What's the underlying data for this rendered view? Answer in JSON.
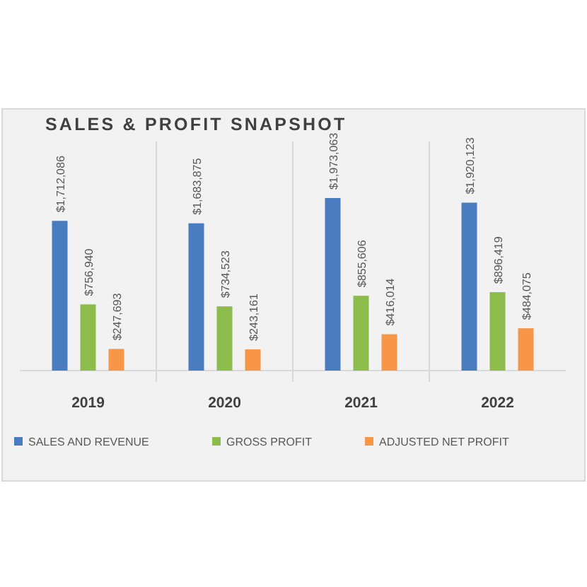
{
  "chart_data": {
    "type": "bar",
    "title": "SALES & PROFIT SNAPSHOT",
    "categories": [
      "2019",
      "2020",
      "2021",
      "2022"
    ],
    "series": [
      {
        "name": "SALES AND REVENUE",
        "color": "#4a7cc0",
        "values": [
          1712086,
          1683875,
          1973063,
          1920123
        ],
        "value_labels": [
          "$1,712,086",
          "$1,683,875",
          "$1,973,063",
          "$1,920,123"
        ]
      },
      {
        "name": "GROSS PROFIT",
        "color": "#8cbc4c",
        "values": [
          756940,
          734523,
          855606,
          896419
        ],
        "value_labels": [
          "$756,940",
          "$734,523",
          "$855,606",
          "$896,419"
        ]
      },
      {
        "name": "ADJUSTED NET PROFIT",
        "color": "#f79646",
        "values": [
          247693,
          243161,
          416014,
          484075
        ],
        "value_labels": [
          "$247,693",
          "$243,161",
          "$416,014",
          "$484,075"
        ]
      }
    ],
    "legend": "bottom"
  }
}
